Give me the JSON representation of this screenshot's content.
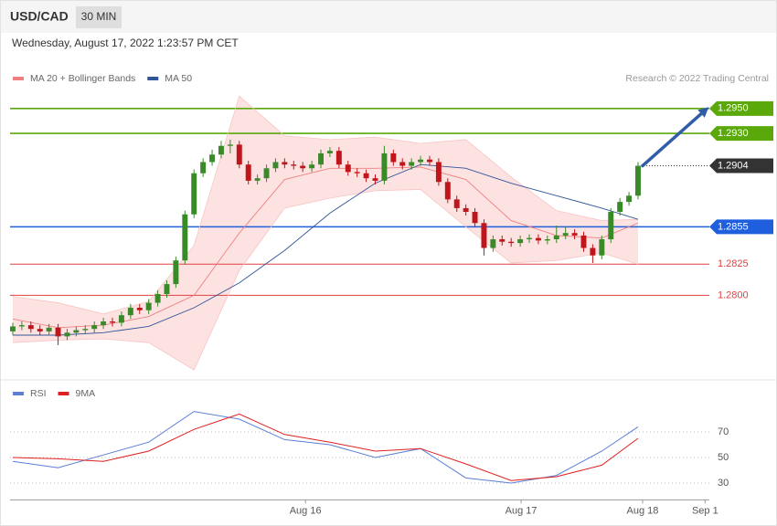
{
  "header": {
    "title": "USD/CAD",
    "interval": "30 MIN",
    "date": "Wednesday, August 17, 2022 1:23:57 PM CET"
  },
  "chart_data": [
    {
      "type": "candlestick",
      "credit": "Research © 2022 Trading Central",
      "xlim": [
        -0.3,
        76.87
      ],
      "ylim": [
        1.2735,
        1.2966
      ],
      "up_color": "#3a8a2a",
      "down_color": "#c0161b",
      "open": [
        1.2771,
        1.2775,
        1.2776,
        1.2773,
        1.2771,
        1.2774,
        1.2767,
        1.277,
        1.2772,
        1.2773,
        1.2776,
        1.2779,
        1.2778,
        1.2784,
        1.279,
        1.2788,
        1.2794,
        1.2801,
        1.2809,
        1.2828,
        1.2865,
        1.2898,
        1.2907,
        1.2913,
        1.292,
        1.2921,
        1.2905,
        1.2892,
        1.2894,
        1.2902,
        1.2907,
        1.2905,
        1.2904,
        1.2902,
        1.2905,
        1.2914,
        1.2916,
        1.2905,
        1.2899,
        1.2898,
        1.2894,
        1.2892,
        1.2914,
        1.2907,
        1.2904,
        1.2907,
        1.2909,
        1.2907,
        1.2891,
        1.2877,
        1.287,
        1.2867,
        1.2858,
        1.2838,
        1.2845,
        1.2843,
        1.2842,
        1.2845,
        1.2846,
        1.2844,
        1.2845,
        1.2848,
        1.285,
        1.2848,
        1.2838,
        1.2832,
        1.2845,
        1.2867,
        1.2875,
        1.288
      ],
      "high": [
        1.2778,
        1.2779,
        1.2779,
        1.2776,
        1.2777,
        1.2777,
        1.2773,
        1.2775,
        1.2776,
        1.2779,
        1.2782,
        1.2782,
        1.2787,
        1.2793,
        1.2793,
        1.2797,
        1.2804,
        1.2812,
        1.2831,
        1.2868,
        1.2901,
        1.291,
        1.2917,
        1.2924,
        1.2925,
        1.2924,
        1.2908,
        1.2897,
        1.2905,
        1.291,
        1.291,
        1.2908,
        1.2907,
        1.2908,
        1.2917,
        1.2919,
        1.2919,
        1.2908,
        1.2902,
        1.2901,
        1.2897,
        1.292,
        1.2917,
        1.291,
        1.291,
        1.2912,
        1.2912,
        1.291,
        1.2894,
        1.288,
        1.2873,
        1.287,
        1.2861,
        1.2848,
        1.2848,
        1.2846,
        1.2848,
        1.2849,
        1.2849,
        1.2848,
        1.2856,
        1.2855,
        1.2853,
        1.2851,
        1.2841,
        1.2848,
        1.287,
        1.2878,
        1.2883,
        1.2907
      ],
      "low": [
        1.2768,
        1.2772,
        1.277,
        1.2768,
        1.2768,
        1.276,
        1.2764,
        1.2767,
        1.2769,
        1.277,
        1.2773,
        1.2775,
        1.2775,
        1.2781,
        1.2785,
        1.2785,
        1.2791,
        1.2798,
        1.2806,
        1.2825,
        1.2862,
        1.2895,
        1.2904,
        1.291,
        1.2914,
        1.2902,
        1.2889,
        1.2889,
        1.2891,
        1.2899,
        1.2902,
        1.2901,
        1.2899,
        1.2899,
        1.2902,
        1.2911,
        1.2902,
        1.2896,
        1.2895,
        1.2891,
        1.2889,
        1.2889,
        1.2904,
        1.2901,
        1.2901,
        1.2904,
        1.2904,
        1.2888,
        1.2874,
        1.2867,
        1.2864,
        1.2855,
        1.2832,
        1.2835,
        1.284,
        1.2839,
        1.2839,
        1.2842,
        1.2841,
        1.2841,
        1.2842,
        1.2845,
        1.2845,
        1.2835,
        1.2826,
        1.2829,
        1.2842,
        1.2864,
        1.2872,
        1.2877
      ],
      "close": [
        1.2775,
        1.2776,
        1.2773,
        1.2771,
        1.2774,
        1.2767,
        1.277,
        1.2772,
        1.2773,
        1.2776,
        1.2779,
        1.2778,
        1.2784,
        1.279,
        1.2788,
        1.2794,
        1.2801,
        1.2809,
        1.2828,
        1.2865,
        1.2898,
        1.2907,
        1.2913,
        1.292,
        1.2921,
        1.2905,
        1.2892,
        1.2894,
        1.2902,
        1.2907,
        1.2905,
        1.2904,
        1.2902,
        1.2905,
        1.2914,
        1.2916,
        1.2905,
        1.2899,
        1.2898,
        1.2894,
        1.2892,
        1.2914,
        1.2907,
        1.2904,
        1.2907,
        1.2909,
        1.2907,
        1.2891,
        1.2877,
        1.287,
        1.2867,
        1.2858,
        1.2838,
        1.2845,
        1.2843,
        1.2842,
        1.2845,
        1.2846,
        1.2844,
        1.2845,
        1.2848,
        1.285,
        1.2848,
        1.2838,
        1.2832,
        1.2845,
        1.2867,
        1.2875,
        1.288,
        1.2904
      ],
      "indicators": {
        "x": [
          0,
          5,
          10,
          15,
          20,
          25,
          30,
          35,
          40,
          45,
          50,
          55,
          60,
          65,
          69
        ],
        "band_color": "#fde2e2",
        "series": [
          {
            "name": "MA 20 + Bollinger Bands",
            "color": "#f08080",
            "values": [
              1.2781,
              1.2774,
              1.2776,
              1.2783,
              1.28,
              1.285,
              1.2893,
              1.2902,
              1.2902,
              1.2903,
              1.2893,
              1.286,
              1.2848,
              1.2846,
              1.2858
            ],
            "upper": [
              1.2799,
              1.2794,
              1.2785,
              1.2795,
              1.284,
              1.296,
              1.2928,
              1.2925,
              1.2927,
              1.2922,
              1.2925,
              1.2895,
              1.2868,
              1.286,
              1.2861
            ],
            "lower": [
              1.2762,
              1.2764,
              1.2765,
              1.2762,
              1.274,
              1.282,
              1.287,
              1.2878,
              1.2884,
              1.2885,
              1.2855,
              1.2826,
              1.2828,
              1.2834,
              1.2825
            ]
          },
          {
            "name": "MA 50",
            "color": "#2f5597",
            "values": [
              1.2768,
              1.2768,
              1.277,
              1.2775,
              1.279,
              1.281,
              1.2836,
              1.2866,
              1.289,
              1.2905,
              1.2902,
              1.289,
              1.288,
              1.287,
              1.2861
            ]
          }
        ]
      },
      "levels": [
        {
          "value": 1.295,
          "label": "1.2950",
          "color": "#5aa80a",
          "style": "tag",
          "line": "solid"
        },
        {
          "value": 1.293,
          "label": "1.2930",
          "color": "#5aa80a",
          "style": "tag",
          "line": "solid"
        },
        {
          "value": 1.2904,
          "label": "1.2904",
          "color": "#333333",
          "style": "tag",
          "line": "dotted"
        },
        {
          "value": 1.2855,
          "label": "1.2855",
          "color": "#1f5fdd",
          "style": "tag",
          "line": "solid"
        },
        {
          "value": 1.2825,
          "label": "1.2825",
          "color": "#e04040",
          "style": "text",
          "line": "solid"
        },
        {
          "value": 1.28,
          "label": "1.2800",
          "color": "#e04040",
          "style": "text",
          "line": "solid"
        }
      ],
      "arrow": {
        "x": [
          69.5,
          76.47
        ],
        "y": [
          1.2904,
          1.2949
        ],
        "color": "#2f5da8"
      }
    },
    {
      "type": "line",
      "xlim": [
        -0.3,
        76.87
      ],
      "xticks": [
        {
          "value": 32.3,
          "label": "Aug 16"
        },
        {
          "value": 56.1,
          "label": "Aug 17"
        },
        {
          "value": 69.5,
          "label": "Aug 18"
        },
        {
          "value": 76.4,
          "label": "Sep 1"
        }
      ],
      "ylim": [
        19,
        94
      ],
      "yticks": [
        30,
        50,
        70
      ],
      "grid": true,
      "x": [
        0,
        5,
        10,
        15,
        20,
        25,
        30,
        35,
        40,
        45,
        50,
        55,
        60,
        65,
        69
      ],
      "series": [
        {
          "name": "RSI",
          "color": "#5b7fd6",
          "values": [
            47,
            42,
            52,
            62,
            86,
            80,
            64,
            60,
            50,
            57,
            34,
            30,
            36,
            55,
            74
          ]
        },
        {
          "name": "9MA",
          "color": "#e02020",
          "values": [
            50,
            49,
            47,
            55,
            72,
            84,
            68,
            62,
            55,
            57,
            45,
            32,
            35,
            44,
            65
          ]
        }
      ]
    }
  ]
}
